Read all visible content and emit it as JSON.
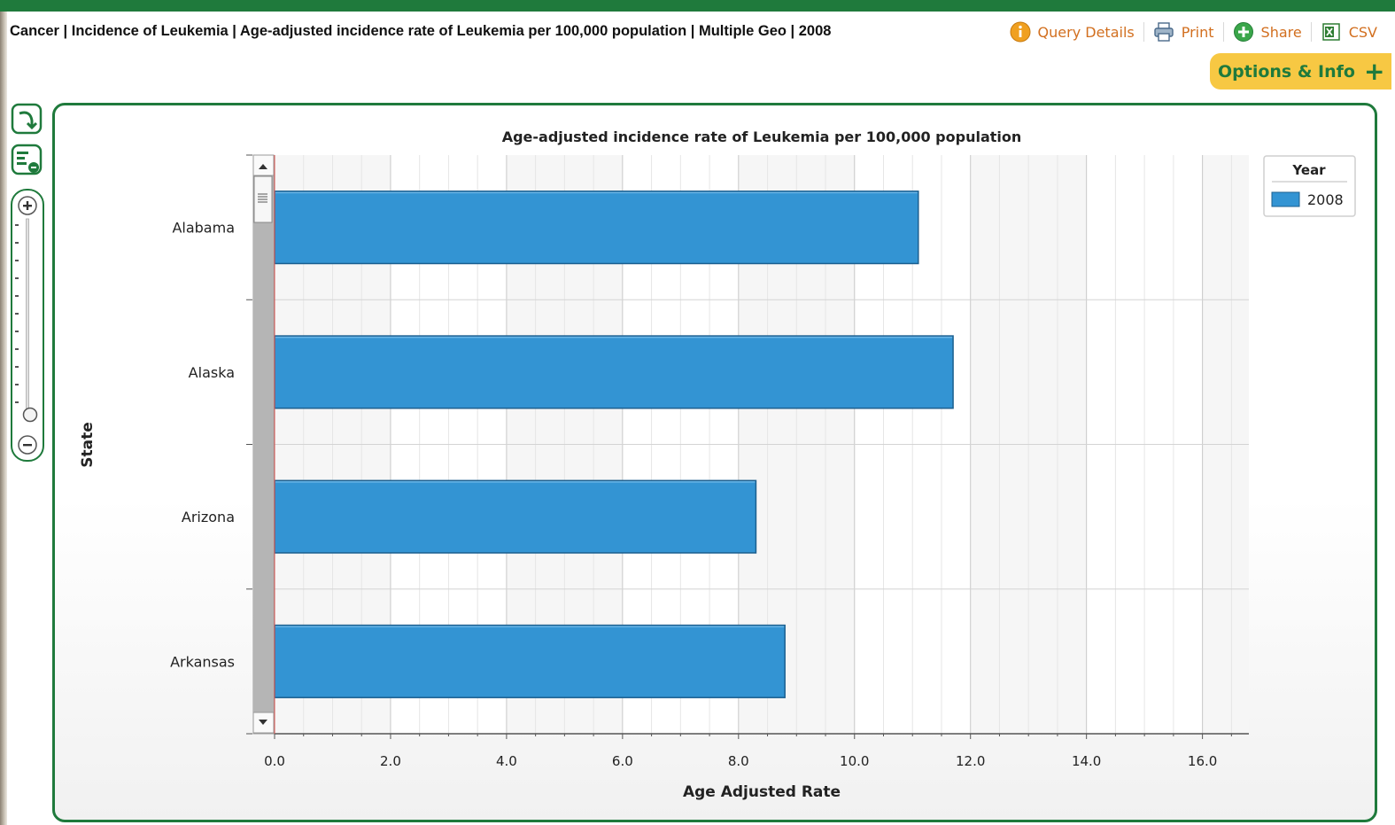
{
  "header": {
    "title": "Cancer | Incidence of Leukemia | Age-adjusted incidence rate of Leukemia per 100,000 population | Multiple Geo | 2008"
  },
  "toolbar": {
    "query_details": "Query Details",
    "print": "Print",
    "share": "Share",
    "csv": "CSV"
  },
  "options": {
    "label": "Options & Info",
    "icon": "plus-icon"
  },
  "colors": {
    "brand_green": "#1f7a3c",
    "accent_orange": "#d26f1f",
    "bar_blue": "#3394d3",
    "options_yellow": "#f7c843"
  },
  "chart_data": {
    "type": "bar",
    "orientation": "horizontal",
    "title": "Age-adjusted incidence rate of Leukemia per 100,000 population",
    "xlabel": "Age Adjusted Rate",
    "ylabel": "State",
    "categories": [
      "Alabama",
      "Alaska",
      "Arizona",
      "Arkansas"
    ],
    "series": [
      {
        "name": "2008",
        "values": [
          11.1,
          11.7,
          8.3,
          8.8
        ]
      }
    ],
    "xlim": [
      0,
      16.8
    ],
    "xticks": [
      "0.0",
      "2.0",
      "4.0",
      "6.0",
      "8.0",
      "10.0",
      "12.0",
      "14.0",
      "16.0"
    ],
    "legend": {
      "title": "Year",
      "placement": "right"
    },
    "grid": true
  }
}
